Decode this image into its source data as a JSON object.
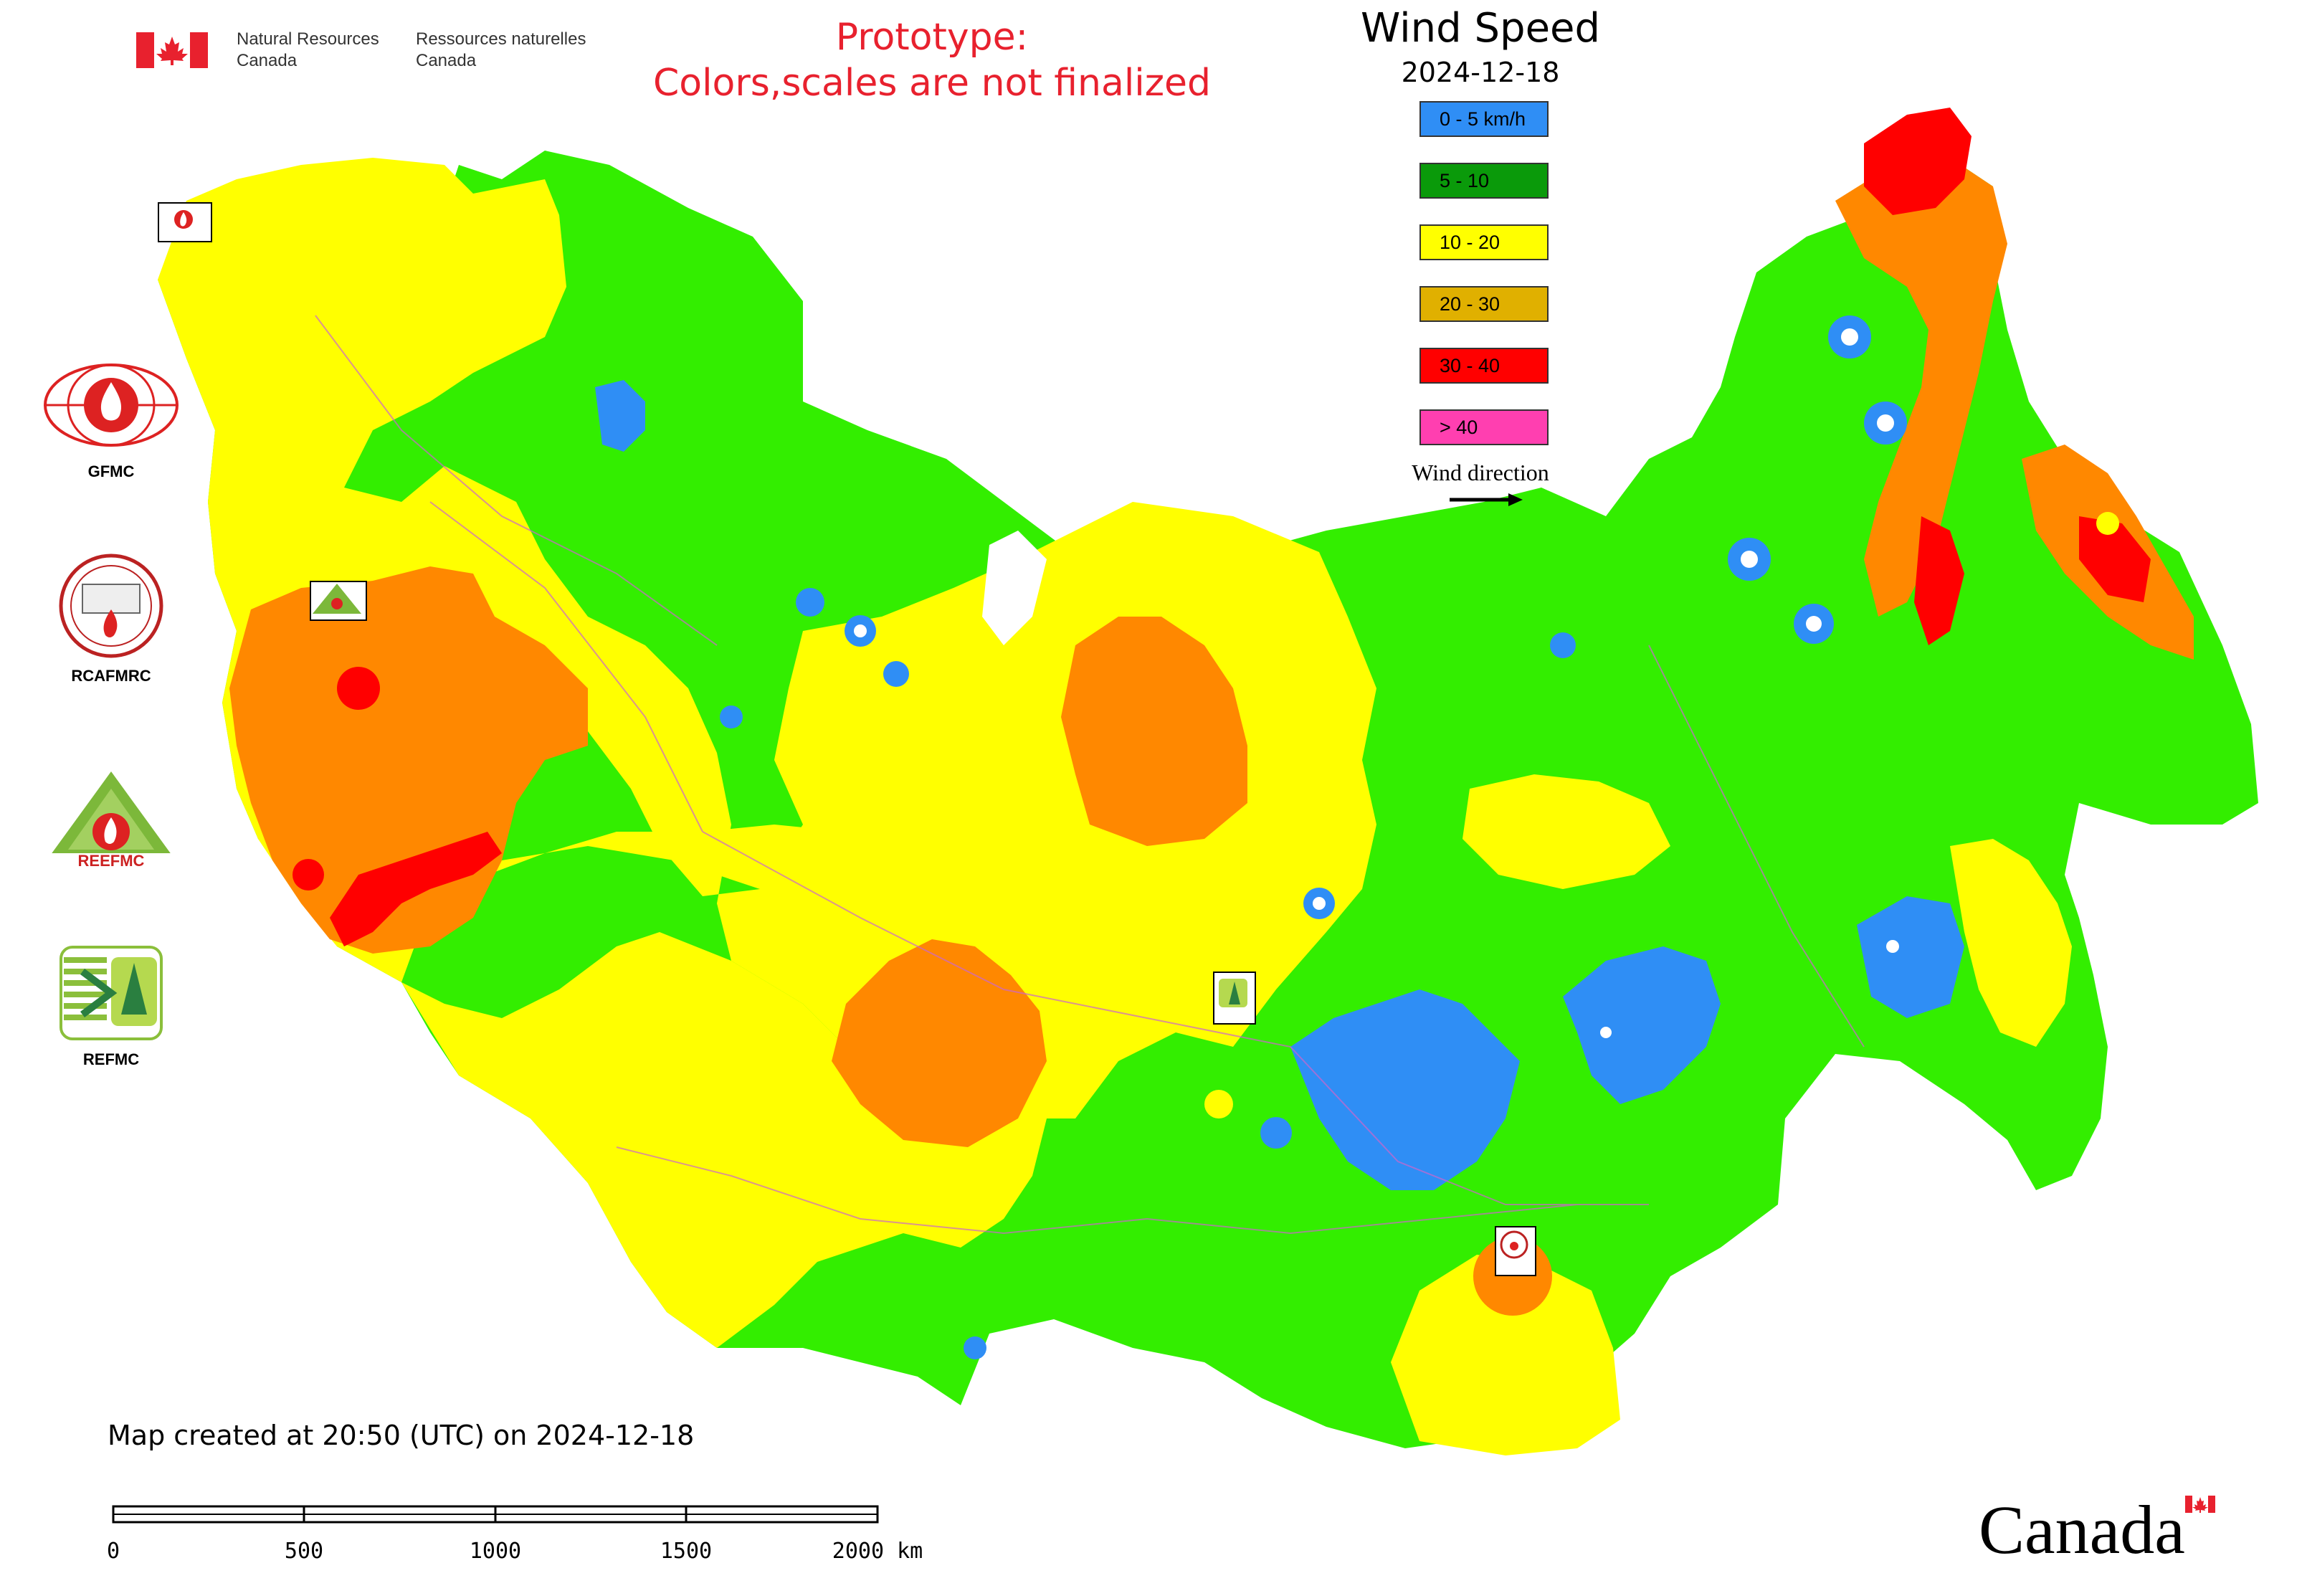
{
  "header": {
    "en_name_line1": "Natural Resources",
    "en_name_line2": "Canada",
    "fr_name_line1": "Ressources naturelles",
    "fr_name_line2": "Canada",
    "notice_line1": "Prototype:",
    "notice_line2": "Colors,scales are not finalized"
  },
  "legend": {
    "title": "Wind Speed",
    "date": "2024-12-18",
    "classes": [
      {
        "label": "0 - 5 km/h",
        "color": "#2f8ef5"
      },
      {
        "label": "5 - 10",
        "color": "#0a9a0a"
      },
      {
        "label": "10 - 20",
        "color": "#ffff00"
      },
      {
        "label": "20 - 30",
        "color": "#e0b000"
      },
      {
        "label": "30 - 40",
        "color": "#ff0000"
      },
      {
        "label": "> 40",
        "color": "#ff3fb0"
      }
    ],
    "wind_direction_label": "Wind direction"
  },
  "logos": {
    "gfmc": "GFMC",
    "rcafmrc": "RCAFMRC",
    "reefmc": "REEFMC",
    "refmc": "REFMC"
  },
  "map_colors": {
    "calm": "#2f8ef5",
    "light": "#33ee00",
    "moderate": "#ffff00",
    "strong": "#ff8800",
    "very_strong": "#ff0000",
    "extreme": "#ff3fb0",
    "boundary": "#cc66cc"
  },
  "footer": {
    "created": "Map created at 20:50 (UTC) on 2024-12-18",
    "scale_ticks": [
      "0",
      "500",
      "1000",
      "1500",
      "2000 km"
    ],
    "wordmark": "Canada"
  }
}
